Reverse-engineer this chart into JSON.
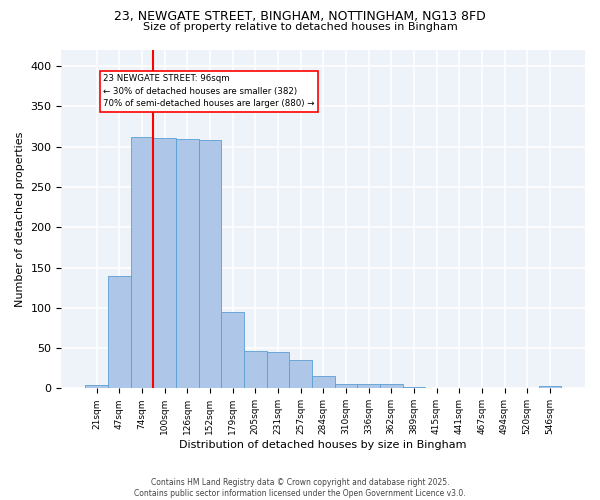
{
  "title1": "23, NEWGATE STREET, BINGHAM, NOTTINGHAM, NG13 8FD",
  "title2": "Size of property relative to detached houses in Bingham",
  "xlabel": "Distribution of detached houses by size in Bingham",
  "ylabel": "Number of detached properties",
  "categories": [
    "21sqm",
    "47sqm",
    "74sqm",
    "100sqm",
    "126sqm",
    "152sqm",
    "179sqm",
    "205sqm",
    "231sqm",
    "257sqm",
    "284sqm",
    "310sqm",
    "336sqm",
    "362sqm",
    "389sqm",
    "415sqm",
    "441sqm",
    "467sqm",
    "494sqm",
    "520sqm",
    "546sqm"
  ],
  "values": [
    4,
    140,
    312,
    311,
    309,
    308,
    95,
    46,
    45,
    35,
    15,
    6,
    6,
    6,
    2,
    1,
    0,
    0,
    0,
    0,
    3
  ],
  "bar_color": "#aec6e8",
  "bar_edge_color": "#5a9fd4",
  "vline_x": 2.5,
  "vline_color": "red",
  "annotation_text": "23 NEWGATE STREET: 96sqm\n← 30% of detached houses are smaller (382)\n70% of semi-detached houses are larger (880) →",
  "annotation_box_color": "white",
  "annotation_box_edge": "red",
  "bg_color": "#eef3fa",
  "grid_color": "white",
  "footer": "Contains HM Land Registry data © Crown copyright and database right 2025.\nContains public sector information licensed under the Open Government Licence v3.0.",
  "ylim": [
    0,
    420
  ],
  "yticks": [
    0,
    50,
    100,
    150,
    200,
    250,
    300,
    350,
    400
  ]
}
